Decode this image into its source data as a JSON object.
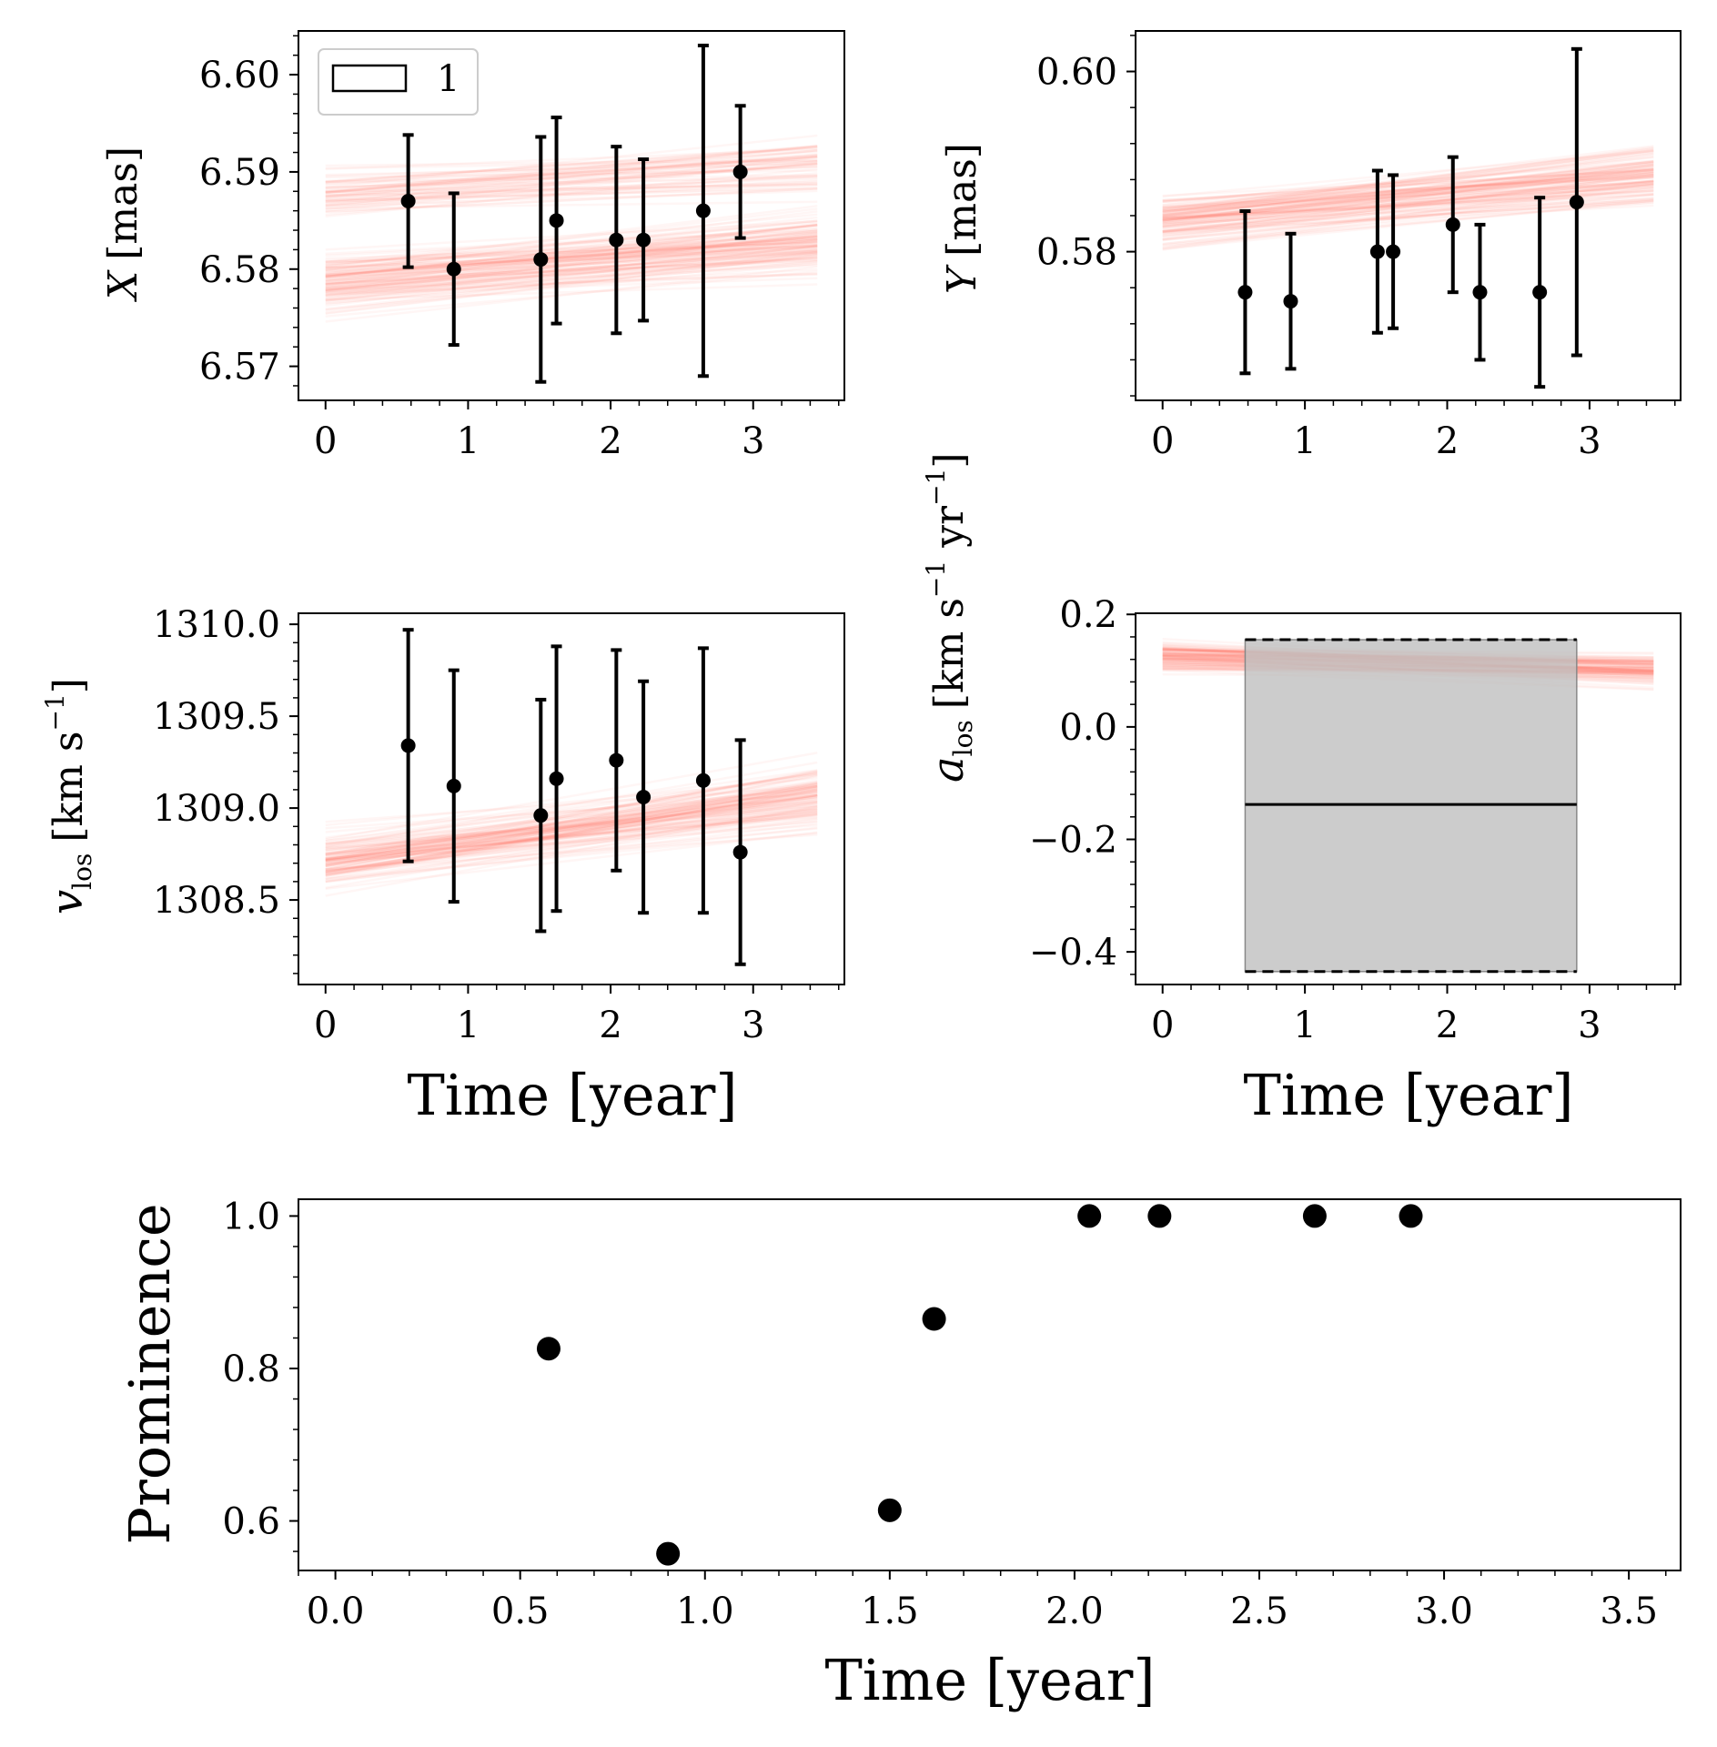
{
  "colors": {
    "model_lines": "#ff6a55",
    "data_points": "#000000",
    "box_fill": "#bfbfbf"
  },
  "chart_data": [
    {
      "id": "x",
      "type": "errorbar",
      "ylabel_var": "X",
      "ylabel_unit": "[mas]",
      "xlim": [
        -0.19,
        3.64
      ],
      "ylim": [
        6.5665,
        6.6045
      ],
      "xticks": [
        0,
        1,
        2,
        3
      ],
      "xtick_labels": [
        "0",
        "1",
        "2",
        "3"
      ],
      "yticks": [
        6.57,
        6.58,
        6.59,
        6.6
      ],
      "ytick_labels": [
        "6.57",
        "6.58",
        "6.59",
        "6.60"
      ],
      "legend": [
        {
          "label": "1",
          "style": "box"
        }
      ],
      "model": {
        "x0": 0,
        "x1": 3.45,
        "y0_center": 6.5785,
        "y1_center": 6.5825,
        "y0_alt": 6.5875,
        "y1_alt": 6.5905,
        "spread": 0.0035
      },
      "points": {
        "x": [
          0.58,
          0.9,
          1.51,
          1.62,
          2.04,
          2.23,
          2.65,
          2.91
        ],
        "y": [
          6.587,
          6.58,
          6.581,
          6.585,
          6.583,
          6.583,
          6.586,
          6.59
        ],
        "yerr": [
          0.0068,
          0.0078,
          0.0126,
          0.0106,
          0.0096,
          0.0083,
          0.017,
          0.0068
        ]
      }
    },
    {
      "id": "y",
      "type": "errorbar",
      "ylabel_var": "Y",
      "ylabel_unit": "[mas]",
      "xlim": [
        -0.19,
        3.64
      ],
      "ylim": [
        0.5635,
        0.6045
      ],
      "xticks": [
        0,
        1,
        2,
        3
      ],
      "xtick_labels": [
        "0",
        "1",
        "2",
        "3"
      ],
      "yticks": [
        0.58,
        0.6
      ],
      "ytick_labels": [
        "0.58",
        "0.60"
      ],
      "model": {
        "x0": 0,
        "x1": 3.45,
        "y0_center": 0.5835,
        "y1_center": 0.5885,
        "spread": 0.0035
      },
      "points": {
        "x": [
          0.58,
          0.9,
          1.51,
          1.62,
          2.04,
          2.23,
          2.65,
          2.91
        ],
        "y": [
          0.5755,
          0.5745,
          0.58,
          0.58,
          0.583,
          0.5755,
          0.5755,
          0.5855
        ],
        "yerr": [
          0.009,
          0.0075,
          0.009,
          0.0085,
          0.0075,
          0.0075,
          0.0105,
          0.017
        ]
      }
    },
    {
      "id": "vlos",
      "type": "errorbar",
      "ylabel_var": "v",
      "ylabel_sub": "los",
      "ylabel_unit": "[km s",
      "ylabel_unit_tail": "]",
      "ylabel_sup": "−1",
      "xlim": [
        -0.19,
        3.64
      ],
      "ylim": [
        1308.04,
        1310.06
      ],
      "xticks": [
        0,
        1,
        2,
        3
      ],
      "xtick_labels": [
        "0",
        "1",
        "2",
        "3"
      ],
      "yticks": [
        1308.5,
        1309.0,
        1309.5,
        1310.0
      ],
      "ytick_labels": [
        "1308.5",
        "1309.0",
        "1309.5",
        "1310.0"
      ],
      "model": {
        "x0": 0,
        "x1": 3.45,
        "y0_center": 1308.72,
        "y1_center": 1309.06,
        "spread": 0.22
      },
      "points": {
        "x": [
          0.58,
          0.9,
          1.51,
          1.62,
          2.04,
          2.23,
          2.65,
          2.91
        ],
        "y": [
          1309.34,
          1309.12,
          1308.96,
          1309.16,
          1309.26,
          1309.06,
          1309.15,
          1308.76
        ],
        "yerr": [
          0.63,
          0.63,
          0.63,
          0.72,
          0.6,
          0.63,
          0.72,
          0.61
        ]
      }
    },
    {
      "id": "alos",
      "type": "band",
      "ylabel_var": "a",
      "ylabel_sub": "los",
      "ylabel_unit": "[km s",
      "ylabel_sup": "−1",
      "ylabel_unit2": " yr",
      "ylabel_sup2": "−1",
      "ylabel_unit_tail": "]",
      "xlim": [
        -0.19,
        3.64
      ],
      "ylim": [
        -0.458,
        0.202
      ],
      "xticks": [
        0,
        1,
        2,
        3
      ],
      "xtick_labels": [
        "0",
        "1",
        "2",
        "3"
      ],
      "yticks": [
        -0.4,
        -0.2,
        0.0,
        0.2
      ],
      "ytick_labels": [
        "−0.4",
        "−0.2",
        "0.0",
        "0.2"
      ],
      "model": {
        "x0": 0,
        "x1": 3.45,
        "y0_center": 0.125,
        "y1_center": 0.1,
        "spread": 0.035
      },
      "box": {
        "x0": 0.58,
        "x1": 2.91,
        "lower": -0.435,
        "upper": 0.155,
        "mean": -0.138
      }
    },
    {
      "id": "prominence",
      "type": "scatter",
      "ylabel": "Prominence",
      "xlim": [
        -0.1,
        3.64
      ],
      "ylim": [
        0.535,
        1.022
      ],
      "xticks": [
        0.0,
        0.5,
        1.0,
        1.5,
        2.0,
        2.5,
        3.0,
        3.5
      ],
      "xtick_labels": [
        "0.0",
        "0.5",
        "1.0",
        "1.5",
        "2.0",
        "2.5",
        "3.0",
        "3.5"
      ],
      "yticks": [
        0.6,
        0.8,
        1.0
      ],
      "ytick_labels": [
        "0.6",
        "0.8",
        "1.0"
      ],
      "points": {
        "x": [
          0.577,
          0.9,
          1.5,
          1.62,
          2.04,
          2.23,
          2.65,
          2.91
        ],
        "y": [
          0.826,
          0.557,
          0.614,
          0.865,
          1.0,
          1.0,
          1.0,
          1.0
        ]
      }
    }
  ],
  "xlabel_shared": "Time [year]"
}
